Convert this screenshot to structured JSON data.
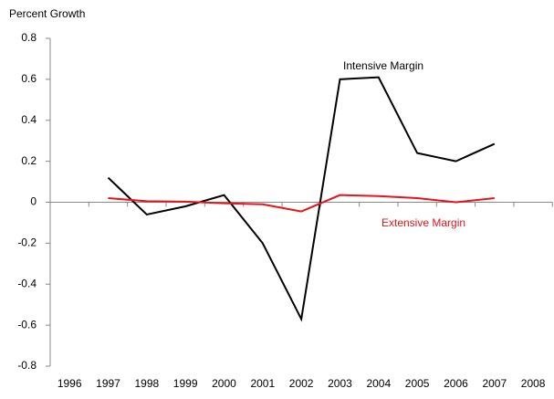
{
  "chart_data": {
    "type": "line",
    "y_label": "Percent Growth",
    "categories": [
      "1996",
      "1997",
      "1998",
      "1999",
      "2000",
      "2001",
      "2002",
      "2003",
      "2004",
      "2005",
      "2006",
      "2007",
      "2008"
    ],
    "series": [
      {
        "name": "Intensive Margin",
        "color": "#000000",
        "values": [
          null,
          0.12,
          -0.06,
          -0.02,
          0.035,
          -0.2,
          -0.57,
          0.6,
          0.61,
          0.24,
          0.2,
          0.285,
          null
        ]
      },
      {
        "name": "Extensive Margin",
        "color": "#e8141b",
        "values": [
          null,
          0.02,
          0.005,
          0.003,
          -0.005,
          -0.01,
          -0.045,
          0.035,
          0.03,
          0.02,
          0.0,
          0.02,
          null
        ]
      }
    ],
    "ylim": [
      -0.8,
      0.8
    ],
    "yticks": [
      -0.8,
      -0.6,
      -0.4,
      -0.2,
      0,
      0.2,
      0.4,
      0.6,
      0.8
    ]
  }
}
